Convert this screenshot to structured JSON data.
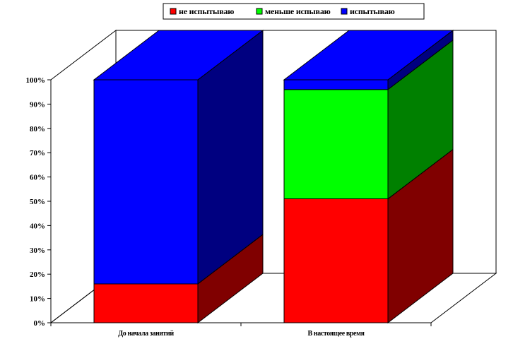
{
  "chart_data": {
    "type": "bar",
    "stacked": true,
    "three_d": true,
    "percent_stacked": true,
    "categories": [
      "До начала занятий",
      "В настоящее время"
    ],
    "series": [
      {
        "name": "не испытываю",
        "values": [
          16,
          51
        ],
        "color": "#FF0000",
        "side_color": "#800000"
      },
      {
        "name": "меньше испываю",
        "values": [
          0,
          45
        ],
        "color": "#00FF00",
        "side_color": "#008000"
      },
      {
        "name": "испытываю",
        "values": [
          84,
          4
        ],
        "color": "#0000FF",
        "side_color": "#000080"
      }
    ],
    "y_ticks": [
      "0%",
      "10%",
      "20%",
      "30%",
      "40%",
      "50%",
      "60%",
      "70%",
      "80%",
      "90%",
      "100%"
    ],
    "ylim": [
      0,
      100
    ],
    "legend_position": "top",
    "grid": false
  }
}
